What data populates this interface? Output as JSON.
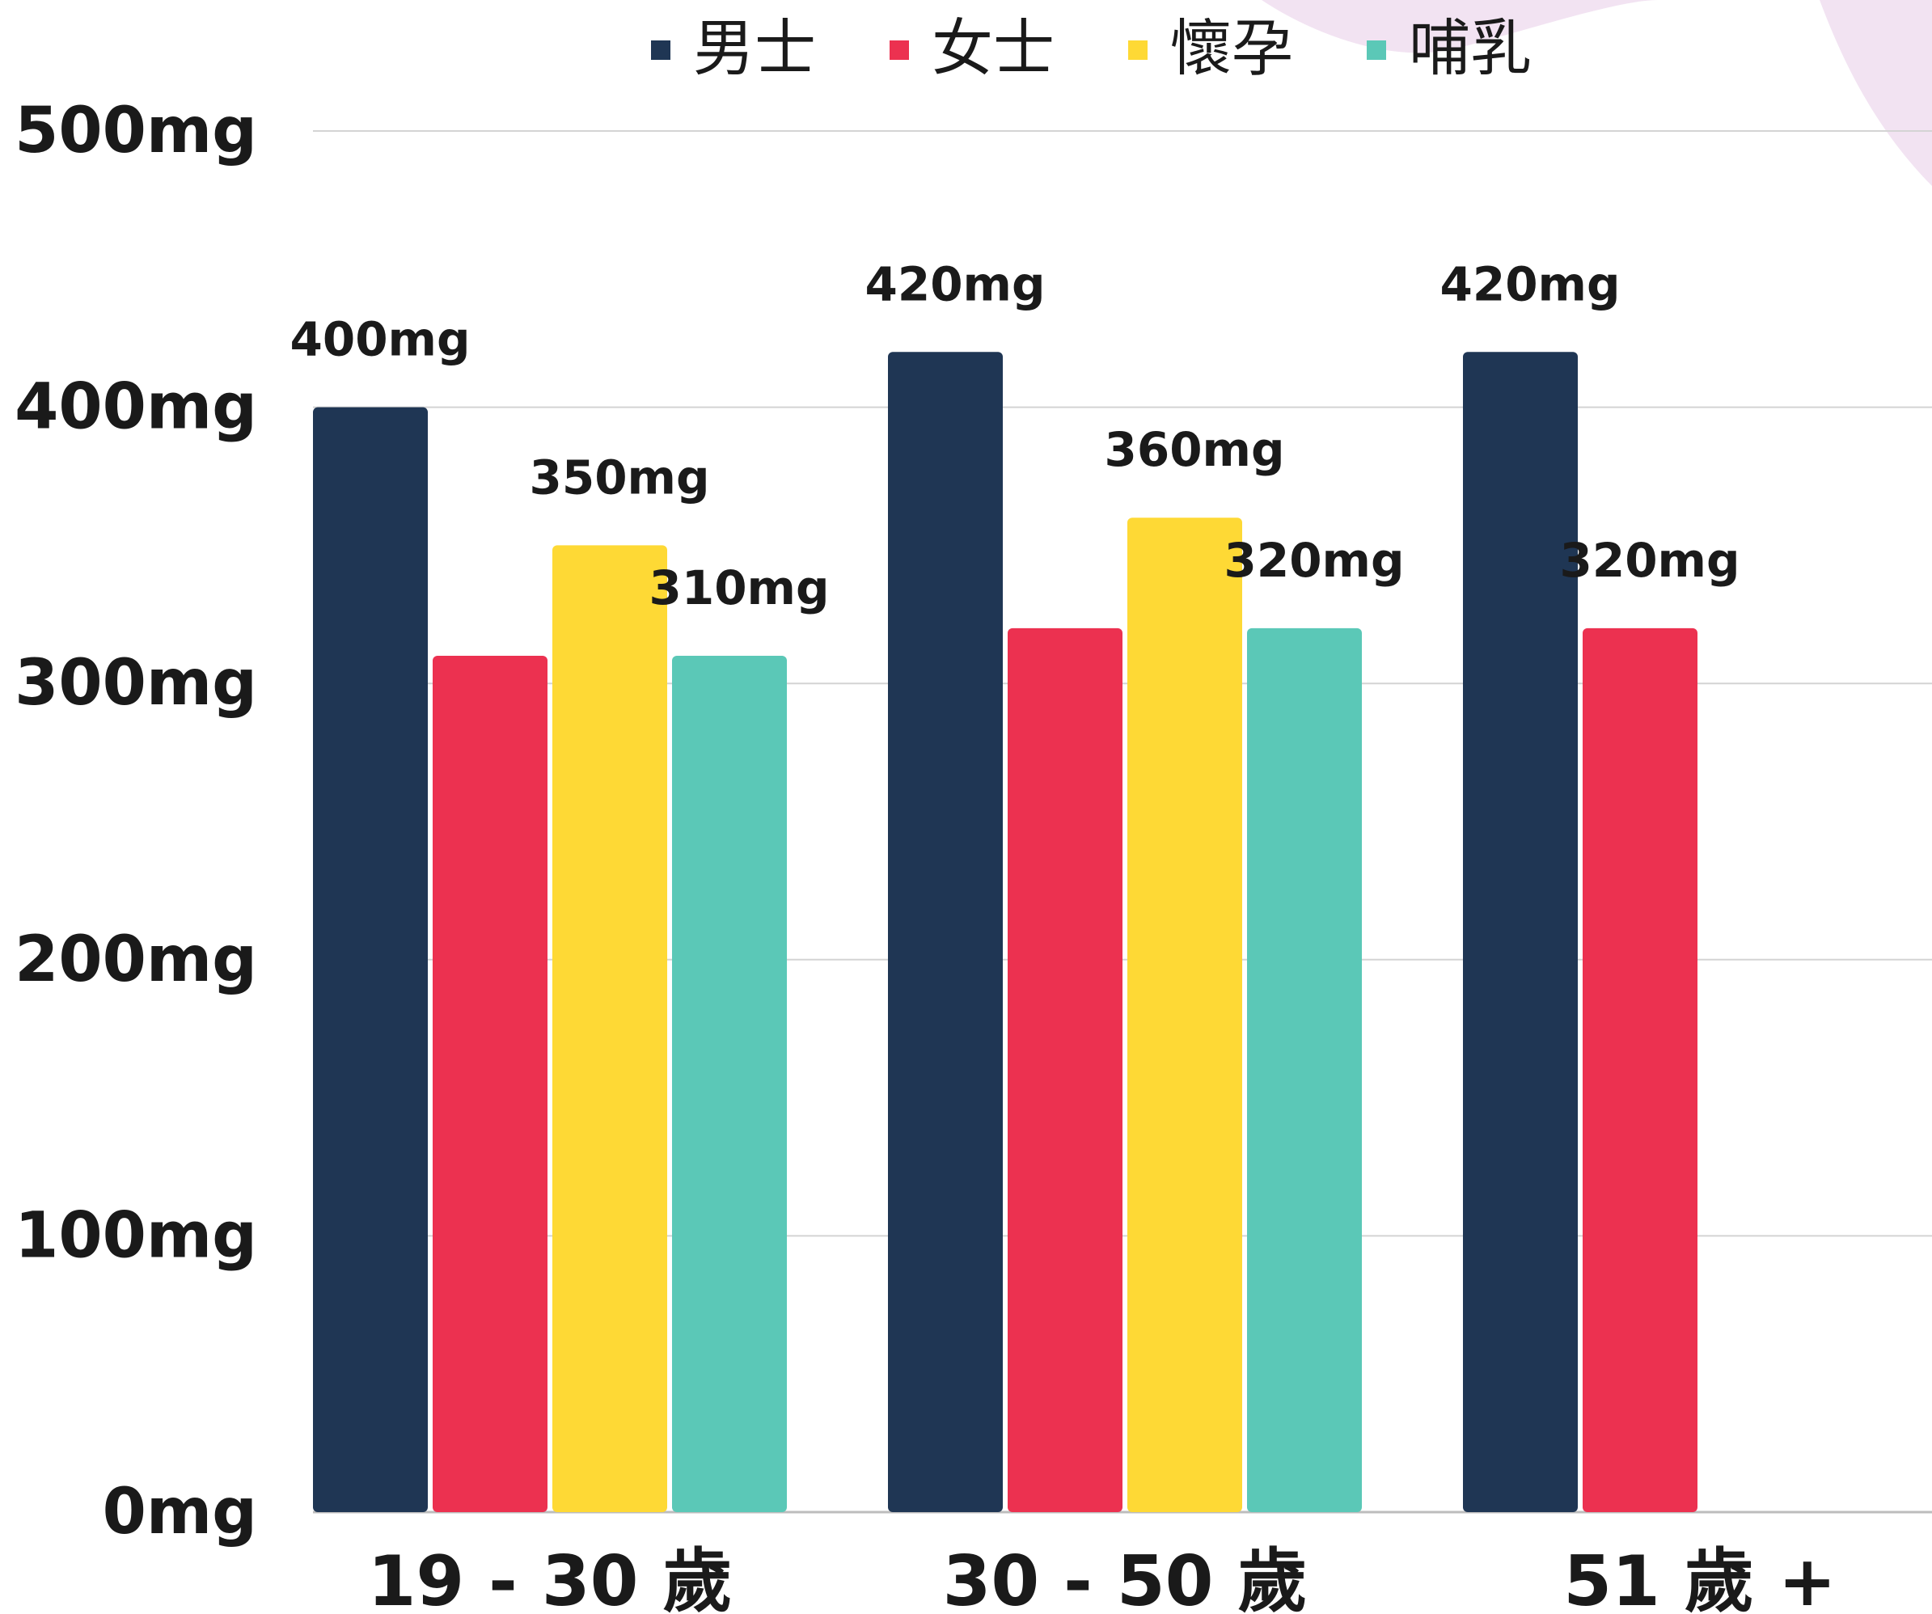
{
  "chart_data": {
    "type": "bar",
    "categories": [
      "19 - 30 歲",
      "30 - 50 歲",
      "51 歲 +"
    ],
    "series": [
      {
        "name": "男士",
        "color": "#1f3654",
        "values": [
          400,
          420,
          420
        ],
        "labels": [
          "400mg",
          "420mg",
          "420mg"
        ]
      },
      {
        "name": "女士",
        "color": "#ec3150",
        "values": [
          310,
          320,
          320
        ],
        "labels": [
          "",
          "",
          "320mg"
        ]
      },
      {
        "name": "懷孕",
        "color": "#fed935",
        "values": [
          350,
          360,
          null
        ],
        "labels": [
          "350mg",
          "360mg",
          ""
        ]
      },
      {
        "name": "哺乳",
        "color": "#5bc8b7",
        "values": [
          310,
          320,
          null
        ],
        "labels": [
          "310mg",
          "320mg",
          ""
        ]
      }
    ],
    "yticks": [
      "0mg",
      "100mg",
      "200mg",
      "300mg",
      "400mg",
      "500mg"
    ],
    "ylim": [
      0,
      500
    ],
    "grid": true,
    "legend_position": "top",
    "decoration_color": "#f2e3f2"
  }
}
